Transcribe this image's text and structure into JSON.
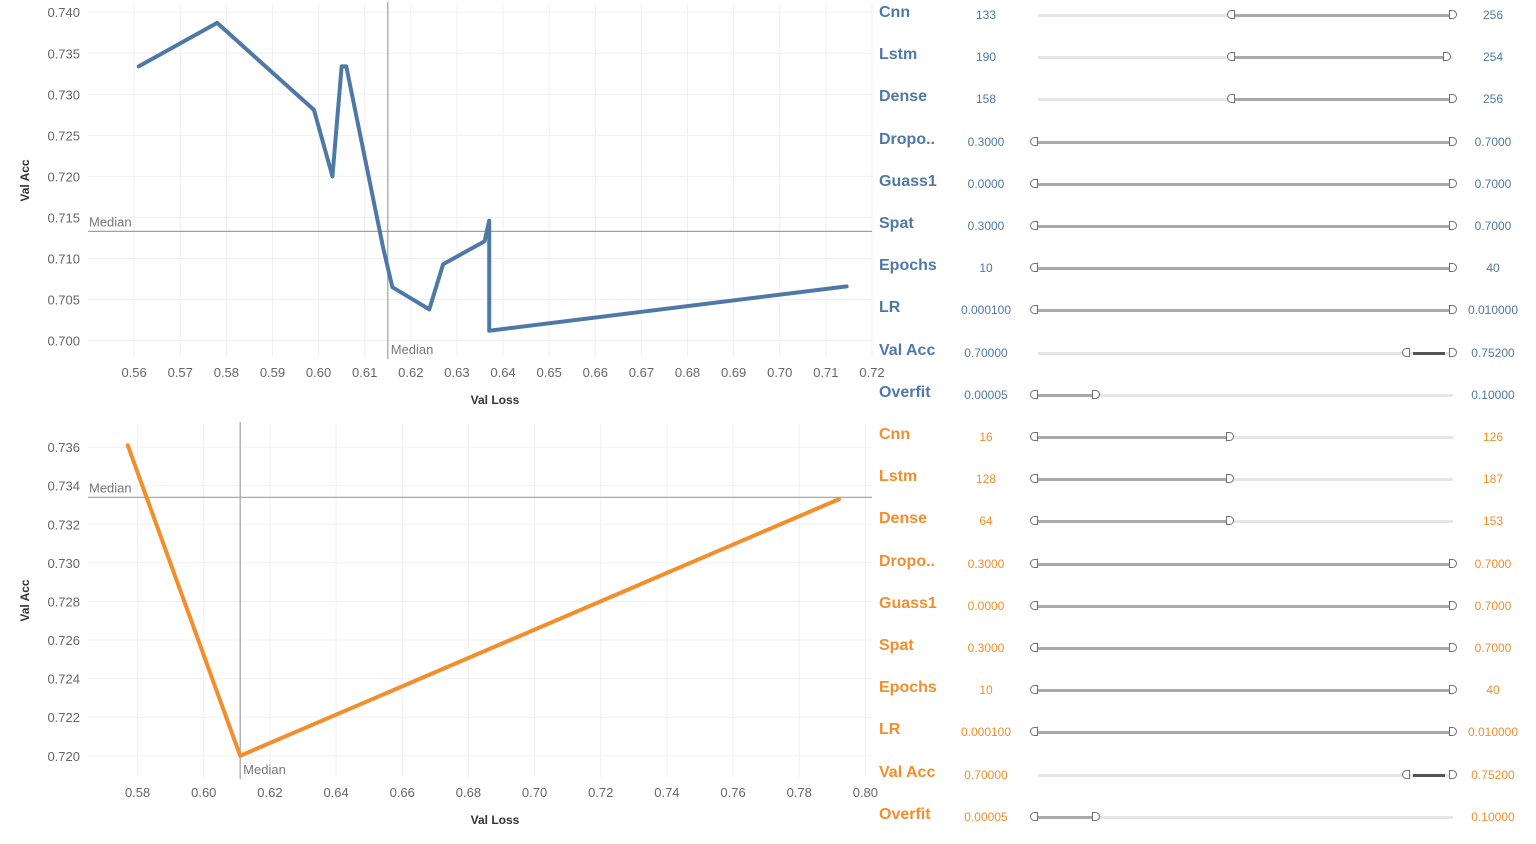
{
  "colors": {
    "blue": "#4e79a7",
    "orange": "#f28e2b",
    "median_line": "#a0a0a0"
  },
  "chart_data": [
    {
      "type": "line",
      "xlabel": "Val Loss",
      "ylabel": "Val Acc",
      "xlim": [
        0.55,
        0.72
      ],
      "ylim": [
        0.698,
        0.741
      ],
      "xticks": [
        0.56,
        0.57,
        0.58,
        0.59,
        0.6,
        0.61,
        0.62,
        0.63,
        0.64,
        0.65,
        0.66,
        0.67,
        0.68,
        0.69,
        0.7,
        0.71,
        0.72
      ],
      "xtick_labels": [
        "0.56",
        "0.57",
        "0.58",
        "0.59",
        "0.60",
        "0.61",
        "0.62",
        "0.63",
        "0.64",
        "0.65",
        "0.66",
        "0.67",
        "0.68",
        "0.69",
        "0.70",
        "0.71",
        "0.72"
      ],
      "yticks": [
        0.7,
        0.705,
        0.71,
        0.715,
        0.72,
        0.725,
        0.73,
        0.735,
        0.74
      ],
      "ytick_labels": [
        "0.700",
        "0.705",
        "0.710",
        "0.715",
        "0.720",
        "0.725",
        "0.730",
        "0.735",
        "0.740"
      ],
      "series": [
        {
          "color": "#4e79a7",
          "x": [
            0.561,
            0.578,
            0.599,
            0.603,
            0.605,
            0.606,
            0.614,
            0.616,
            0.624,
            0.627,
            0.636,
            0.637,
            0.637,
            0.7145
          ],
          "y": [
            0.7334,
            0.7387,
            0.7281,
            0.72,
            0.7334,
            0.7334,
            0.7113,
            0.7065,
            0.7038,
            0.7093,
            0.7121,
            0.7146,
            0.7012,
            0.7066
          ]
        }
      ],
      "median": {
        "x": 0.615,
        "y": 0.7133,
        "label_x": "Median",
        "label_y": "Median"
      },
      "grid": true
    },
    {
      "type": "line",
      "xlabel": "Val Loss",
      "ylabel": "Val Acc",
      "xlim": [
        0.565,
        0.802
      ],
      "ylim": [
        0.7189,
        0.7372
      ],
      "xticks": [
        0.58,
        0.6,
        0.62,
        0.64,
        0.66,
        0.68,
        0.7,
        0.72,
        0.74,
        0.76,
        0.78,
        0.8
      ],
      "xtick_labels": [
        "0.58",
        "0.60",
        "0.62",
        "0.64",
        "0.66",
        "0.68",
        "0.70",
        "0.72",
        "0.74",
        "0.76",
        "0.78",
        "0.80"
      ],
      "yticks": [
        0.72,
        0.722,
        0.724,
        0.726,
        0.728,
        0.73,
        0.732,
        0.734,
        0.736
      ],
      "ytick_labels": [
        "0.720",
        "0.722",
        "0.724",
        "0.726",
        "0.728",
        "0.730",
        "0.732",
        "0.734",
        "0.736"
      ],
      "series": [
        {
          "color": "#f28e2b",
          "x": [
            0.577,
            0.611,
            0.792
          ],
          "y": [
            0.7361,
            0.72,
            0.7333
          ]
        }
      ],
      "median": {
        "x": 0.611,
        "y": 0.7334,
        "label_x": "Median",
        "label_y": "Median"
      },
      "grid": true
    }
  ],
  "filters_top": [
    {
      "name": "Cnn",
      "min": "133",
      "max": "256",
      "lo": 0.47,
      "hi": 1.0,
      "track": "short"
    },
    {
      "name": "Lstm",
      "min": "190",
      "max": "254",
      "lo": 0.47,
      "hi": 0.985,
      "track": "short"
    },
    {
      "name": "Dense",
      "min": "158",
      "max": "256",
      "lo": 0.47,
      "hi": 1.0,
      "track": "short"
    },
    {
      "name": "Dropo..",
      "min": "0.3000",
      "max": "0.7000",
      "lo": 0.0,
      "hi": 1.0,
      "track": "full"
    },
    {
      "name": "Guass1",
      "min": "0.0000",
      "max": "0.7000",
      "lo": 0.0,
      "hi": 1.0,
      "track": "full"
    },
    {
      "name": "Spat",
      "min": "0.3000",
      "max": "0.7000",
      "lo": 0.0,
      "hi": 1.0,
      "track": "full"
    },
    {
      "name": "Epochs",
      "min": "10",
      "max": "40",
      "lo": 0.0,
      "hi": 1.0,
      "track": "full"
    },
    {
      "name": "LR",
      "min": "0.000100",
      "max": "0.010000",
      "lo": 0.0,
      "hi": 1.0,
      "track": "full"
    },
    {
      "name": "Val Acc",
      "min": "0.70000",
      "max": "0.75200",
      "lo": 0.885,
      "hi": 1.0,
      "track": "short",
      "dark": true
    },
    {
      "name": "Overfit",
      "min": "0.00005",
      "max": "0.10000",
      "lo": 0.0,
      "hi": 0.15,
      "track": "full"
    }
  ],
  "filters_bottom": [
    {
      "name": "Cnn",
      "min": "16",
      "max": "126",
      "lo": 0.0,
      "hi": 0.47,
      "track": "full"
    },
    {
      "name": "Lstm",
      "min": "128",
      "max": "187",
      "lo": 0.0,
      "hi": 0.47,
      "track": "full"
    },
    {
      "name": "Dense",
      "min": "64",
      "max": "153",
      "lo": 0.0,
      "hi": 0.47,
      "track": "full"
    },
    {
      "name": "Dropo..",
      "min": "0.3000",
      "max": "0.7000",
      "lo": 0.0,
      "hi": 1.0,
      "track": "full"
    },
    {
      "name": "Guass1",
      "min": "0.0000",
      "max": "0.7000",
      "lo": 0.0,
      "hi": 1.0,
      "track": "full"
    },
    {
      "name": "Spat",
      "min": "0.3000",
      "max": "0.7000",
      "lo": 0.0,
      "hi": 1.0,
      "track": "full"
    },
    {
      "name": "Epochs",
      "min": "10",
      "max": "40",
      "lo": 0.0,
      "hi": 1.0,
      "track": "full"
    },
    {
      "name": "LR",
      "min": "0.000100",
      "max": "0.010000",
      "lo": 0.0,
      "hi": 1.0,
      "track": "full"
    },
    {
      "name": "Val Acc",
      "min": "0.70000",
      "max": "0.75200",
      "lo": 0.885,
      "hi": 1.0,
      "track": "short",
      "dark": true
    },
    {
      "name": "Overfit",
      "min": "0.00005",
      "max": "0.10000",
      "lo": 0.0,
      "hi": 0.15,
      "track": "full"
    }
  ]
}
